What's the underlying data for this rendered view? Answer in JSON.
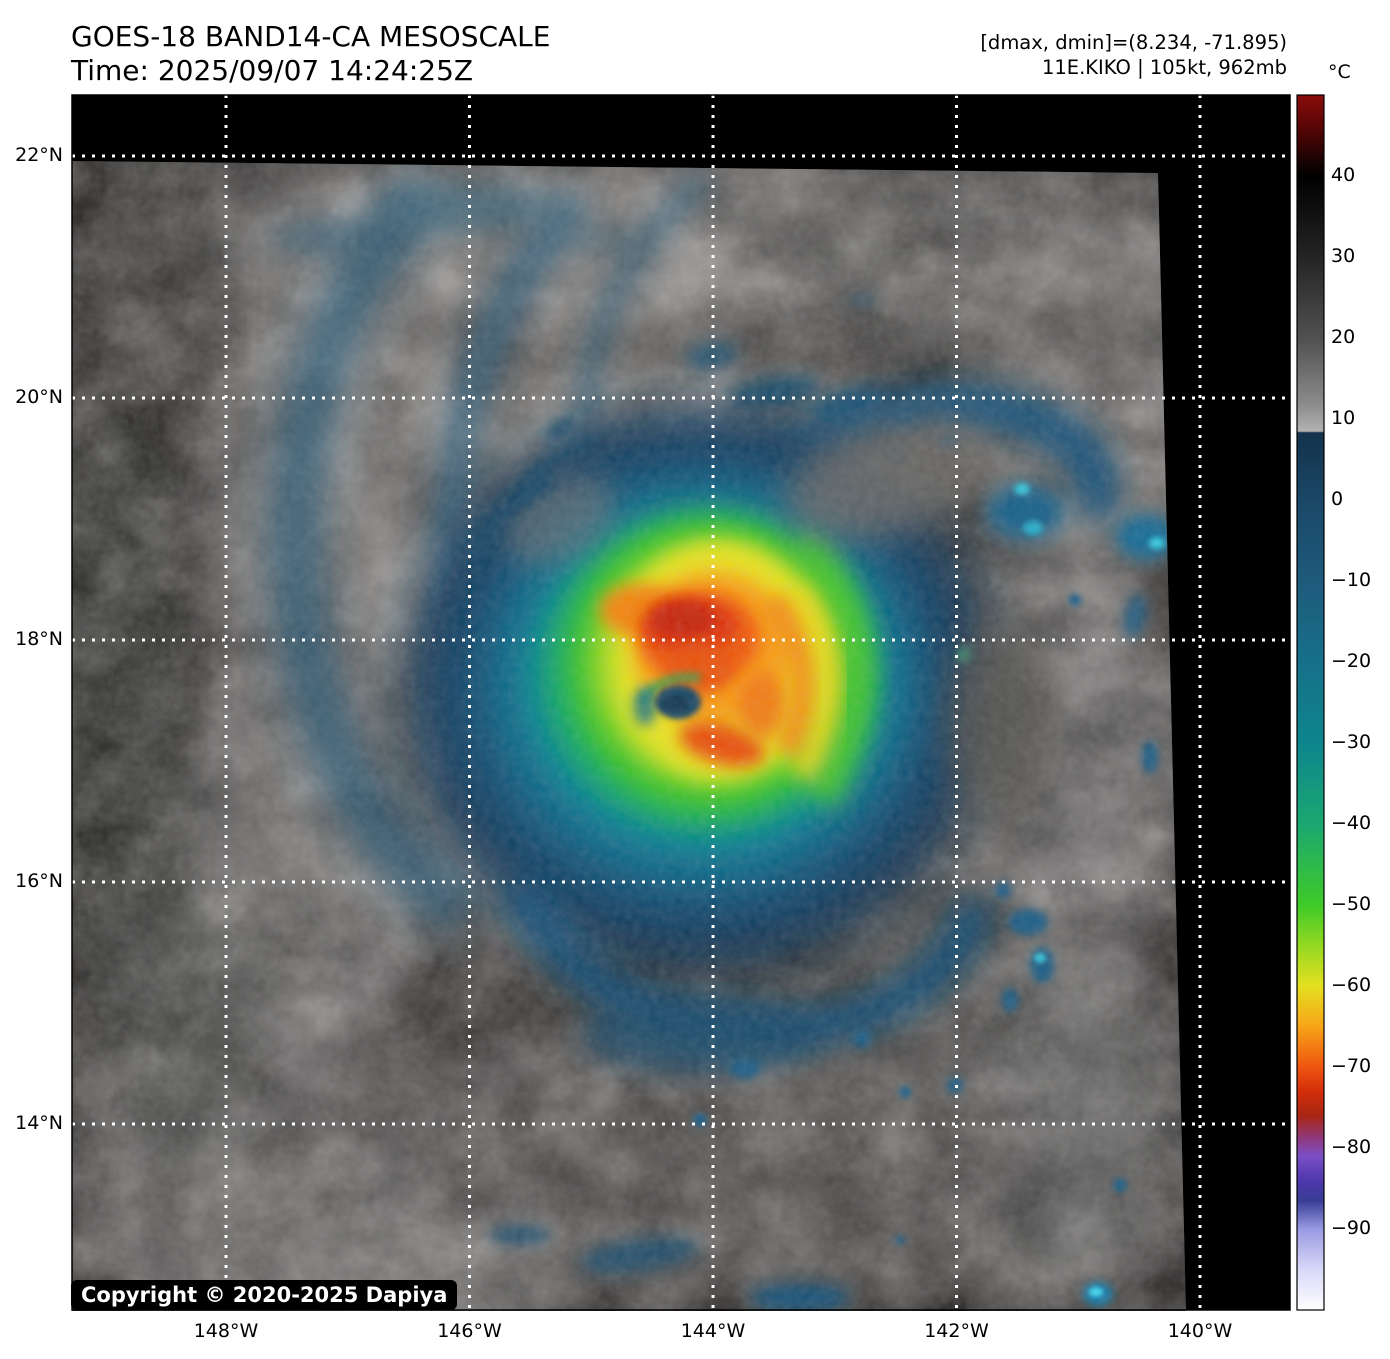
{
  "title_block": {
    "line1": "GOES-18 BAND14-CA MESOSCALE",
    "line2": "Time: 2025/09/07 14:24:25Z"
  },
  "info_block": {
    "line1": "[dmax, dmin]=(8.234, -71.895)",
    "line2": "11E.KIKO | 105kt, 962mb"
  },
  "copyright": "Copyright © 2020-2025 Dapiya",
  "axes": {
    "lat_tick_labels": [
      "22°N",
      "20°N",
      "18°N",
      "16°N",
      "14°N"
    ],
    "lon_tick_labels": [
      "148°W",
      "146°W",
      "144°W",
      "142°W",
      "140°W"
    ]
  },
  "colorbar": {
    "unit": "°C",
    "tick_values": [
      40,
      30,
      20,
      10,
      0,
      -10,
      -20,
      -30,
      -40,
      -50,
      -60,
      -70,
      -80,
      -90
    ],
    "tick_labels": [
      "40",
      "30",
      "20",
      "10",
      "0",
      "−10",
      "−20",
      "−30",
      "−40",
      "−50",
      "−60",
      "−70",
      "−80",
      "−90"
    ]
  },
  "chart_data": {
    "type": "heatmap",
    "title": "GOES-18 BAND14-CA MESOSCALE",
    "timestamp_utc": "2025/09/07 14:24:25Z",
    "quantity": "Infrared brightness temperature",
    "unit": "°C",
    "colorbar_ticks_c": [
      40,
      30,
      20,
      10,
      0,
      -10,
      -20,
      -30,
      -40,
      -50,
      -60,
      -70,
      -80,
      -90
    ],
    "colorbar_range_c_estimated": [
      50,
      -100
    ],
    "dmax_c": 8.234,
    "dmin_c": -71.895,
    "storm": {
      "designation": "11E",
      "name": "KIKO",
      "intensity_kt": 105,
      "pressure_mb": 962
    },
    "x_axis": {
      "tick_labels": [
        "148°W",
        "146°W",
        "144°W",
        "142°W",
        "140°W"
      ],
      "tick_values_deg": [
        -148,
        -146,
        -144,
        -142,
        -140
      ]
    },
    "y_axis": {
      "tick_labels": [
        "22°N",
        "20°N",
        "18°N",
        "16°N",
        "14°N"
      ],
      "tick_values_deg": [
        22,
        20,
        18,
        16,
        14
      ]
    },
    "grid": "white dotted graticule every 2 degrees",
    "legend_position": "vertical colorbar, right side",
    "visible_features": [
      "Hurricane Kiko with small dark eye near 17.6N 144.4W",
      "Cold convective ring: red/orange core (≈ -65 to -72 C) around eye, yellow-green annulus (≈ -50 to -60 C), blue outer cloud shield (≈ -10 to -40 C)",
      "Warm low clouds (gray, ≈ 10 to 20 C) and warm ocean (near black) surrounding the storm",
      "Black no-data border outside slightly rotated mesoscale sector"
    ]
  }
}
